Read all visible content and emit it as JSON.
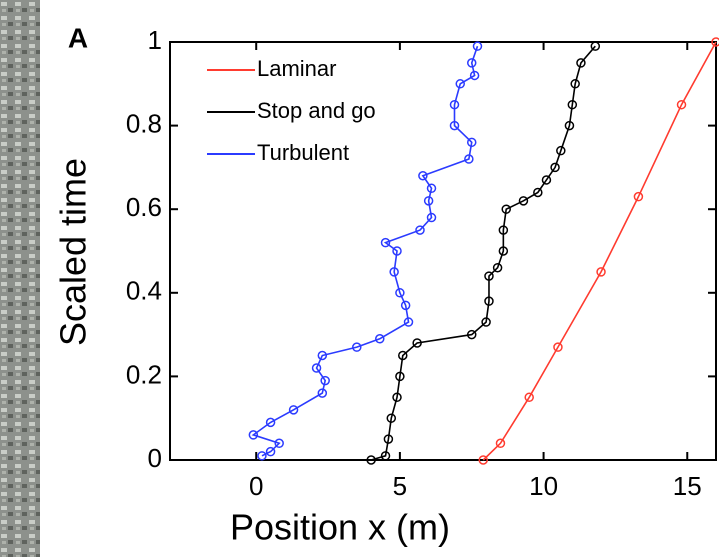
{
  "chart_data": {
    "type": "line",
    "annotation": "A",
    "xlabel": "Position x (m)",
    "ylabel": "Scaled time",
    "xlim": [
      -3,
      16
    ],
    "xticks": [
      0,
      5,
      10,
      15
    ],
    "ylim": [
      0,
      1
    ],
    "yticks": [
      0,
      0.2,
      0.4,
      0.6,
      0.8,
      1
    ],
    "legend": "upper-left",
    "series": [
      {
        "name": "Laminar",
        "color": "#ff3b2f",
        "x": [
          7.9,
          8.5,
          9.5,
          10.5,
          12,
          13.3,
          14.8,
          16
        ],
        "values": [
          0,
          0.04,
          0.15,
          0.27,
          0.45,
          0.63,
          0.85,
          1
        ]
      },
      {
        "name": "Stop and go",
        "color": "#000000",
        "x": [
          4.0,
          4.5,
          4.6,
          4.7,
          4.9,
          5.0,
          5.1,
          5.6,
          7.5,
          8.0,
          8.1,
          8.1,
          8.4,
          8.6,
          8.6,
          8.7,
          9.3,
          9.8,
          10.1,
          10.4,
          10.6,
          10.9,
          11.0,
          11.1,
          11.3,
          11.8
        ],
        "values": [
          0,
          0.01,
          0.05,
          0.1,
          0.15,
          0.2,
          0.25,
          0.28,
          0.3,
          0.33,
          0.38,
          0.44,
          0.46,
          0.5,
          0.55,
          0.6,
          0.62,
          0.64,
          0.67,
          0.7,
          0.74,
          0.8,
          0.85,
          0.9,
          0.95,
          0.99
        ]
      },
      {
        "name": "Turbulent",
        "color": "#2b3bff",
        "x": [
          0.2,
          0.5,
          0.8,
          -0.1,
          0.5,
          1.3,
          2.3,
          2.4,
          2.1,
          2.3,
          3.5,
          4.3,
          5.3,
          5.2,
          5.0,
          4.8,
          4.9,
          4.5,
          5.7,
          6.1,
          6.0,
          6.1,
          5.8,
          7.4,
          7.5,
          6.9,
          6.9,
          7.1,
          7.6,
          7.5,
          7.7
        ],
        "values": [
          0.01,
          0.02,
          0.04,
          0.06,
          0.09,
          0.12,
          0.16,
          0.19,
          0.22,
          0.25,
          0.27,
          0.29,
          0.33,
          0.37,
          0.4,
          0.45,
          0.5,
          0.52,
          0.55,
          0.58,
          0.62,
          0.65,
          0.68,
          0.72,
          0.76,
          0.8,
          0.85,
          0.9,
          0.92,
          0.95,
          0.99
        ]
      }
    ]
  }
}
